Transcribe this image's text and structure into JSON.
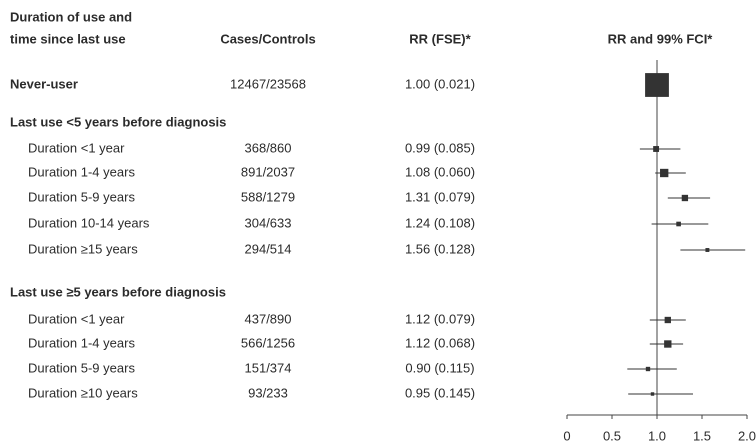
{
  "chart_data": {
    "type": "forest",
    "label_header": [
      "Duration of use and",
      "time since last use"
    ],
    "counts_header": "Cases/Controls",
    "rr_header": "RR (FSE)*",
    "plot_header": "RR and 99% FCI*",
    "categories": [
      "Never-user",
      "Last use <5 years before diagnosis",
      "Duration <1 year",
      "Duration 1-4 years",
      "Duration 5-9 years",
      "Duration 10-14 years",
      "Duration ≥15 years",
      "Last use ≥5 years before diagnosis",
      "Duration <1 year",
      "Duration 1-4 years",
      "Duration 5-9 years",
      "Duration ≥10 years"
    ],
    "counts": [
      "12467/23568",
      null,
      "368/860",
      "891/2037",
      "588/1279",
      "304/633",
      "294/514",
      null,
      "437/890",
      "566/1256",
      "151/374",
      "93/233"
    ],
    "values": [
      1.0,
      null,
      0.99,
      1.08,
      1.31,
      1.24,
      1.56,
      null,
      1.12,
      1.12,
      0.9,
      0.95
    ],
    "value_labels": [
      "1.00 (0.021)",
      null,
      "0.99 (0.085)",
      "1.08 (0.060)",
      "1.31 (0.079)",
      "1.24 (0.108)",
      "1.56 (0.128)",
      null,
      "1.12 (0.079)",
      "1.12 (0.068)",
      "0.90 (0.115)",
      "0.95 (0.145)"
    ],
    "fse": [
      0.021,
      null,
      0.085,
      0.06,
      0.079,
      0.108,
      0.128,
      null,
      0.079,
      0.068,
      0.115,
      0.145
    ],
    "ci_low": [
      0.95,
      null,
      0.81,
      0.98,
      1.12,
      0.94,
      1.26,
      null,
      0.92,
      0.92,
      0.67,
      0.68
    ],
    "ci_high": [
      1.05,
      null,
      1.26,
      1.32,
      1.59,
      1.57,
      1.98,
      null,
      1.32,
      1.29,
      1.22,
      1.4
    ],
    "reference": 1,
    "color": "#333333",
    "xlim": [
      0,
      2
    ],
    "xticks": [
      0,
      0.5,
      {
        "value": 1,
        "label": "1.0"
      },
      1.5,
      {
        "value": 2,
        "label": "2.0"
      }
    ]
  }
}
